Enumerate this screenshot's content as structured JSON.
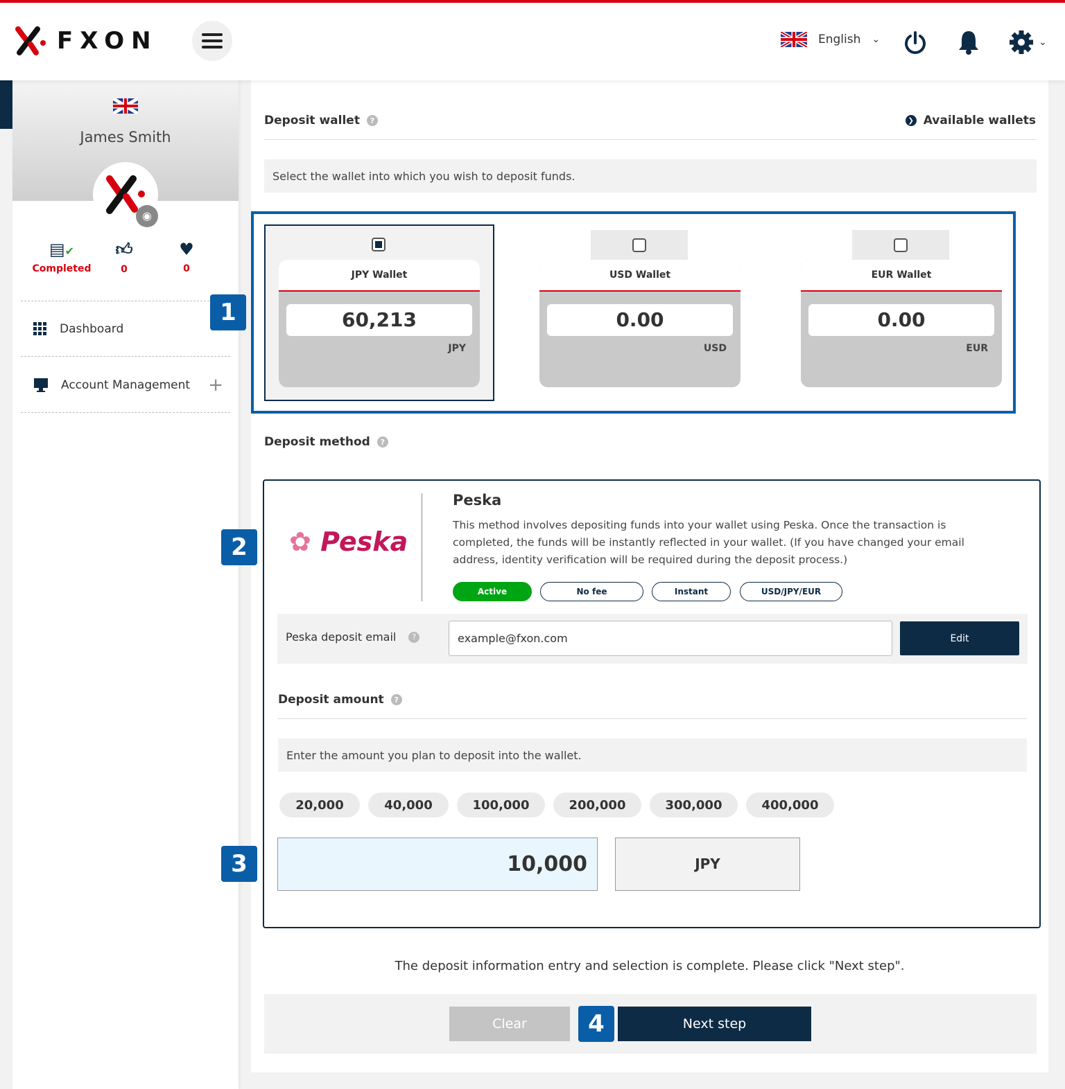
{
  "header": {
    "brand": "FXON",
    "language": "English",
    "icons": [
      "menu-icon",
      "uk-flag-icon",
      "power-icon",
      "bell-icon",
      "gear-icon"
    ]
  },
  "sidebar": {
    "user_name": "James Smith",
    "stats": [
      {
        "label": "Completed"
      },
      {
        "label": "0"
      },
      {
        "label": "0"
      }
    ],
    "items": [
      {
        "label": "Dashboard"
      },
      {
        "label": "Account Management"
      }
    ]
  },
  "deposit_wallet": {
    "title": "Deposit wallet",
    "available_link": "Available wallets",
    "note": "Select the wallet into which you wish to deposit funds.",
    "wallets": [
      {
        "name": "JPY Wallet",
        "balance": "60,213",
        "currency": "JPY",
        "selected": true
      },
      {
        "name": "USD Wallet",
        "balance": "0.00",
        "currency": "USD",
        "selected": false
      },
      {
        "name": "EUR Wallet",
        "balance": "0.00",
        "currency": "EUR",
        "selected": false
      }
    ]
  },
  "deposit_method": {
    "title": "Deposit method",
    "method_name": "Peska",
    "logo_text": "Peska",
    "description": "This method involves depositing funds into your wallet using Peska. Once the transaction is completed, the funds will be instantly reflected in your wallet. (If you have changed your email address, identity verification will be required during the deposit process.)",
    "tags": [
      "Active",
      "No fee",
      "Instant",
      "USD/JPY/EUR"
    ],
    "email_label": "Peska deposit email",
    "email_value": "example@fxon.com",
    "edit_label": "Edit"
  },
  "deposit_amount": {
    "title": "Deposit amount",
    "note": "Enter the amount you plan to deposit into the wallet.",
    "presets": [
      "20,000",
      "40,000",
      "100,000",
      "200,000",
      "300,000",
      "400,000"
    ],
    "value": "10,000",
    "currency": "JPY"
  },
  "footer": {
    "message": "The deposit information entry and selection is complete. Please click \"Next step\".",
    "clear_label": "Clear",
    "next_label": "Next step"
  },
  "badges": [
    "1",
    "2",
    "3",
    "4"
  ],
  "colors": {
    "brand_red": "#d7000f",
    "navy": "#0d2b45",
    "highlight_blue": "#0a5ea8",
    "active_green": "#00a513"
  }
}
